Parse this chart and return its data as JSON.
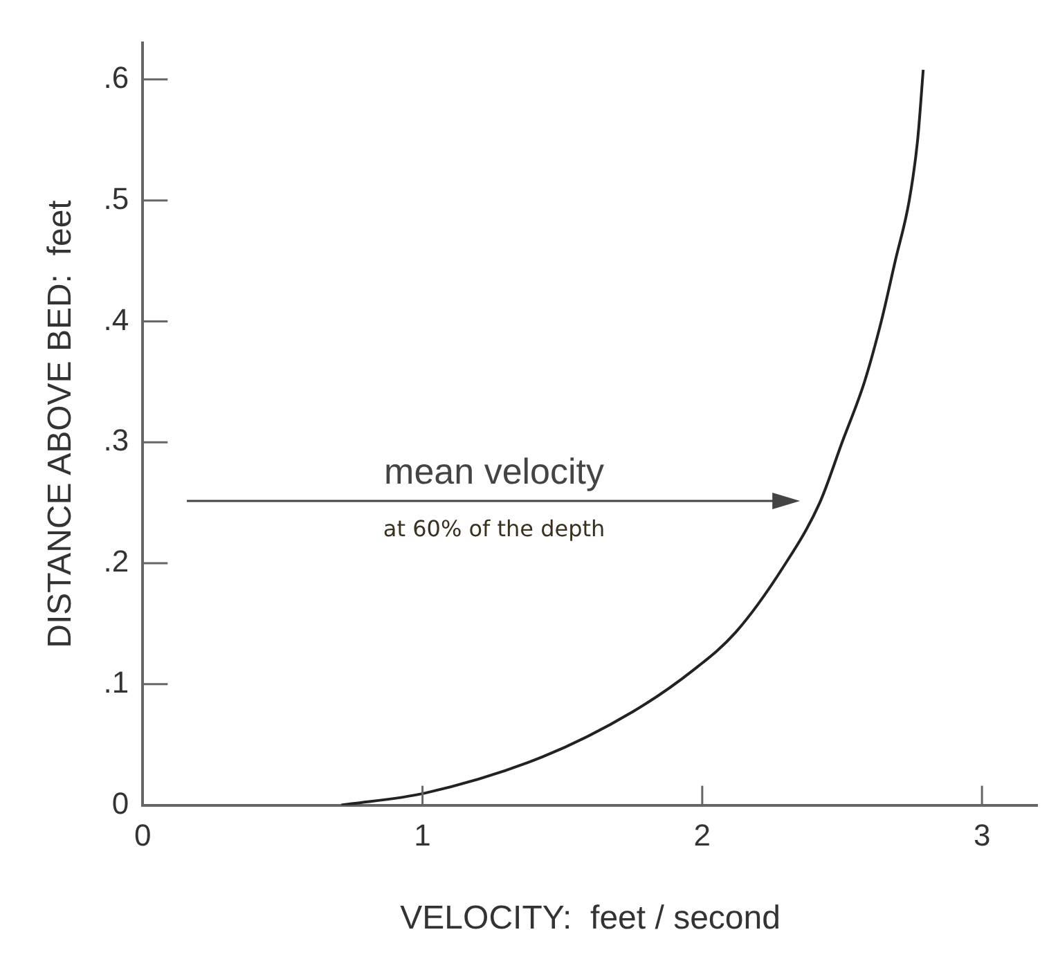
{
  "chart_data": {
    "type": "line",
    "xlabel": "VELOCITY:  feet / second",
    "ylabel": "DISTANCE ABOVE BED:  feet",
    "x": [
      0.71,
      1.01,
      1.43,
      1.75,
      1.97,
      2.12,
      2.29,
      2.42,
      2.5,
      2.58,
      2.64,
      2.69,
      2.74,
      2.77,
      2.79
    ],
    "series": [
      {
        "color": "#222222",
        "values": [
          0,
          0.01,
          0.04,
          0.077,
          0.112,
          0.143,
          0.197,
          0.25,
          0.3,
          0.35,
          0.4,
          0.45,
          0.5,
          0.55,
          0.608
        ]
      }
    ],
    "xlim": [
      0,
      3.2
    ],
    "xticks": [
      0,
      1,
      2,
      3
    ],
    "ylim": [
      0,
      0.63
    ],
    "yticks": [
      0,
      {
        "value": 0.1,
        "label": ".1"
      },
      {
        "value": 0.2,
        "label": ".2"
      },
      {
        "value": 0.3,
        "label": ".3"
      },
      {
        "value": 0.4,
        "label": ".4"
      },
      {
        "value": 0.5,
        "label": ".5"
      },
      {
        "value": 0.6,
        "label": ".6"
      }
    ],
    "annotations": [
      "mean velocity",
      "at 60% of the depth"
    ],
    "grid": false,
    "legend": false,
    "marker": "none",
    "line_style": "solid"
  }
}
